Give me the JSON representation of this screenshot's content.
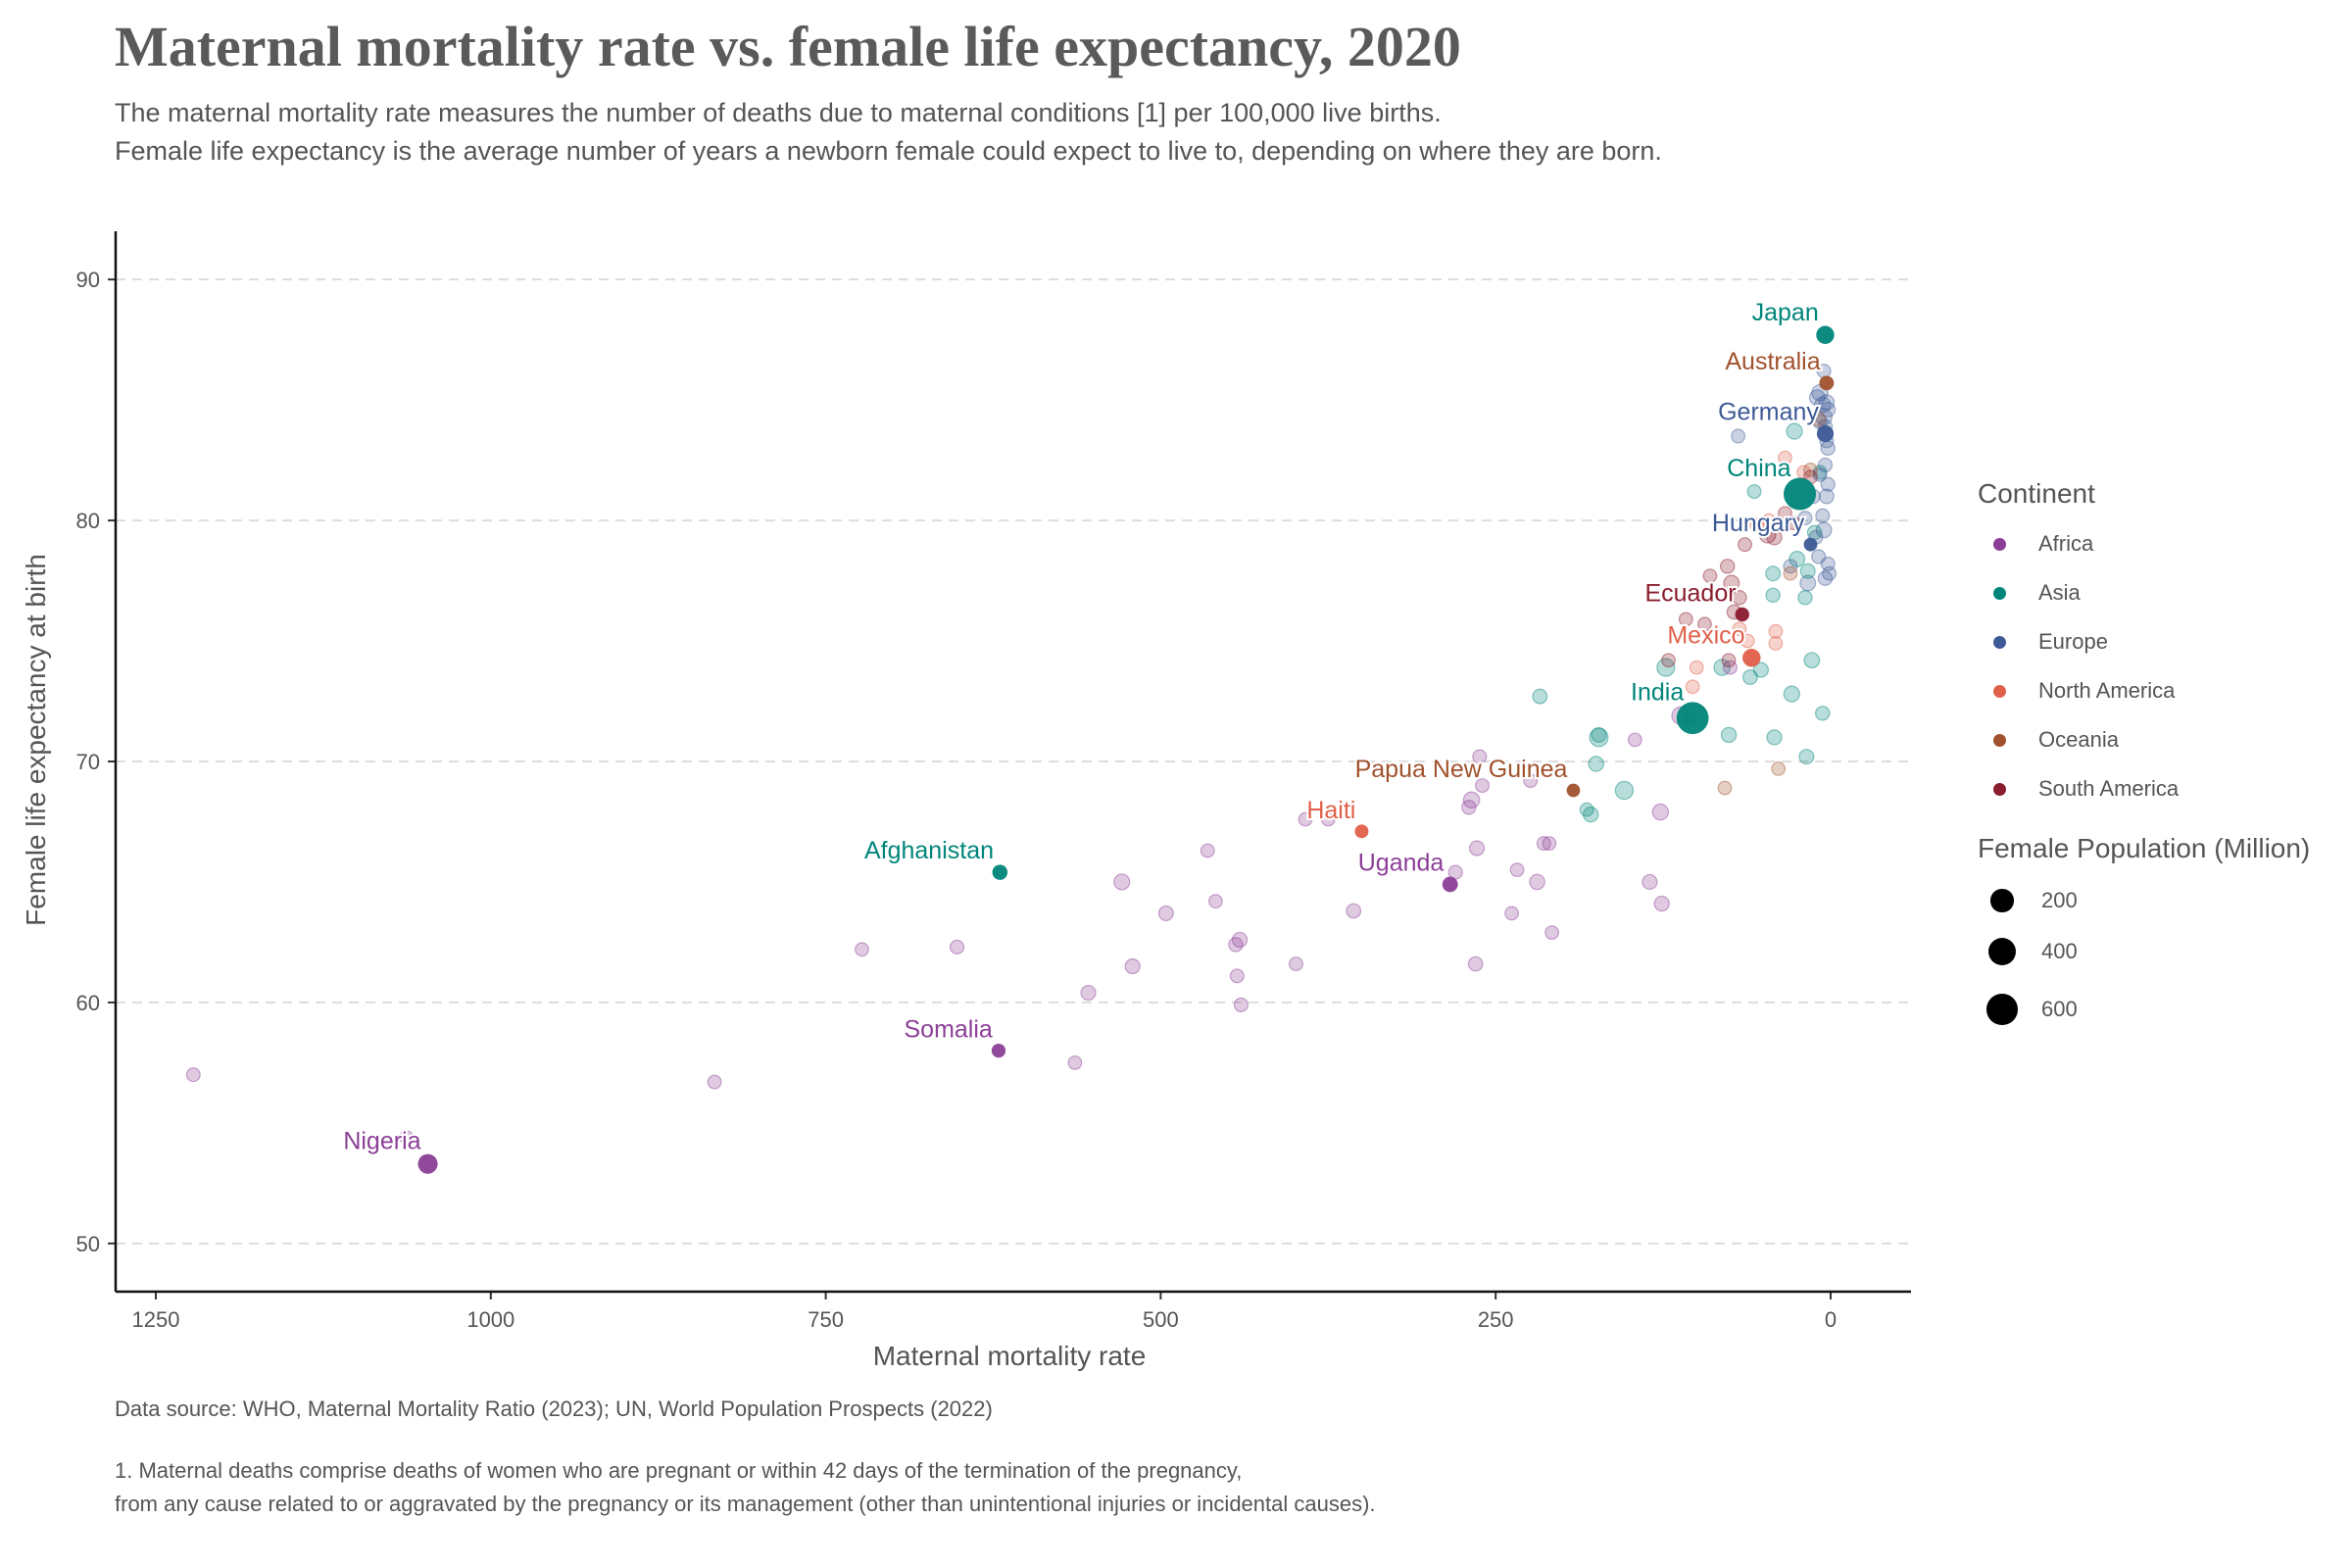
{
  "title": "Maternal mortality rate vs. female life expectancy, 2020",
  "subtitle_1": "The maternal mortality rate measures the number of deaths due to maternal conditions [1] per 100,000 live births.",
  "subtitle_2": "Female life expectancy is the average number of years a newborn female could expect to live to, depending on where they are born.",
  "source": "Data source: WHO, Maternal Mortality Ratio (2023); UN, World Population Prospects (2022)",
  "footnote_1": "1. Maternal deaths comprise deaths of women who are pregnant or within 42 days of the termination of the pregnancy,",
  "footnote_2": "from any cause related to or aggravated by the pregnancy or its management (other than unintentional injuries or incidental causes).",
  "legend": {
    "continent_title": "Continent",
    "continents": [
      {
        "name": "Africa",
        "color": "#8B3F96"
      },
      {
        "name": "Asia",
        "color": "#00857A"
      },
      {
        "name": "Europe",
        "color": "#3D5A96"
      },
      {
        "name": "North America",
        "color": "#E0604A"
      },
      {
        "name": "Oceania",
        "color": "#A0522D"
      },
      {
        "name": "South America",
        "color": "#8B1C2E"
      }
    ],
    "size_title": "Female Population (Million)",
    "sizes": [
      {
        "label": "200",
        "value": 200
      },
      {
        "label": "400",
        "value": 400
      },
      {
        "label": "600",
        "value": 600
      }
    ]
  },
  "chart_data": {
    "type": "scatter",
    "xlabel": "Maternal mortality rate",
    "ylabel": "Female life expectancy at birth",
    "xlim": [
      1280,
      -60
    ],
    "ylim": [
      48,
      92
    ],
    "x_reversed": true,
    "xticks": [
      1250,
      1000,
      750,
      500,
      250,
      0
    ],
    "yticks": [
      50,
      60,
      70,
      80,
      90
    ],
    "grid": "horizontal dashed",
    "legend_position": "right",
    "highlighted": [
      {
        "label": "Japan",
        "continent": "Asia",
        "x": 4,
        "y": 87.7,
        "pop": 64
      },
      {
        "label": "Australia",
        "continent": "Oceania",
        "x": 3,
        "y": 85.7,
        "pop": 13
      },
      {
        "label": "Germany",
        "continent": "Europe",
        "x": 4,
        "y": 83.6,
        "pop": 42
      },
      {
        "label": "China",
        "continent": "Asia",
        "x": 23,
        "y": 81.1,
        "pop": 690
      },
      {
        "label": "Hungary",
        "continent": "Europe",
        "x": 15,
        "y": 79.0,
        "pop": 5
      },
      {
        "label": "Ecuador",
        "continent": "South America",
        "x": 66,
        "y": 76.1,
        "pop": 9
      },
      {
        "label": "Mexico",
        "continent": "North America",
        "x": 59,
        "y": 74.3,
        "pop": 66
      },
      {
        "label": "India",
        "continent": "Asia",
        "x": 103,
        "y": 71.8,
        "pop": 670
      },
      {
        "label": "Papua New Guinea",
        "continent": "Oceania",
        "x": 192,
        "y": 68.8,
        "pop": 4.5
      },
      {
        "label": "Haiti",
        "continent": "North America",
        "x": 350,
        "y": 67.1,
        "pop": 6
      },
      {
        "label": "Afghanistan",
        "continent": "Asia",
        "x": 620,
        "y": 65.4,
        "pop": 19
      },
      {
        "label": "Uganda",
        "continent": "Africa",
        "x": 284,
        "y": 64.9,
        "pop": 23
      },
      {
        "label": "Somalia",
        "continent": "Africa",
        "x": 621,
        "y": 58.0,
        "pop": 8
      },
      {
        "label": "Nigeria",
        "continent": "Africa",
        "x": 1047,
        "y": 53.3,
        "pop": 103
      }
    ],
    "others": [
      {
        "continent": "Africa",
        "x": 1222,
        "y": 57.0,
        "pop": 5
      },
      {
        "continent": "Africa",
        "x": 1063,
        "y": 54.4,
        "pop": 4
      },
      {
        "continent": "Africa",
        "x": 833,
        "y": 56.7,
        "pop": 5
      },
      {
        "continent": "Africa",
        "x": 723,
        "y": 62.2,
        "pop": 4
      },
      {
        "continent": "Africa",
        "x": 652,
        "y": 62.3,
        "pop": 6
      },
      {
        "continent": "Africa",
        "x": 564,
        "y": 57.5,
        "pop": 4
      },
      {
        "continent": "Africa",
        "x": 529,
        "y": 65.0,
        "pop": 25
      },
      {
        "continent": "Africa",
        "x": 554,
        "y": 60.4,
        "pop": 14
      },
      {
        "continent": "Africa",
        "x": 521,
        "y": 61.5,
        "pop": 14
      },
      {
        "continent": "Africa",
        "x": 496,
        "y": 63.7,
        "pop": 13
      },
      {
        "continent": "Africa",
        "x": 465,
        "y": 66.3,
        "pop": 4
      },
      {
        "continent": "Africa",
        "x": 459,
        "y": 64.2,
        "pop": 4
      },
      {
        "continent": "Africa",
        "x": 441,
        "y": 62.6,
        "pop": 15
      },
      {
        "continent": "Africa",
        "x": 444,
        "y": 62.4,
        "pop": 8
      },
      {
        "continent": "Africa",
        "x": 443,
        "y": 61.1,
        "pop": 5
      },
      {
        "continent": "Africa",
        "x": 440,
        "y": 59.9,
        "pop": 6
      },
      {
        "continent": "Africa",
        "x": 399,
        "y": 61.6,
        "pop": 5
      },
      {
        "continent": "Africa",
        "x": 392,
        "y": 67.6,
        "pop": 4
      },
      {
        "continent": "Africa",
        "x": 375,
        "y": 67.6,
        "pop": 4
      },
      {
        "continent": "Africa",
        "x": 356,
        "y": 63.8,
        "pop": 10
      },
      {
        "continent": "Africa",
        "x": 264,
        "y": 66.4,
        "pop": 14
      },
      {
        "continent": "Africa",
        "x": 268,
        "y": 68.4,
        "pop": 30
      },
      {
        "continent": "Africa",
        "x": 270,
        "y": 68.1,
        "pop": 8
      },
      {
        "continent": "Africa",
        "x": 262,
        "y": 70.2,
        "pop": 6
      },
      {
        "continent": "Africa",
        "x": 260,
        "y": 69.0,
        "pop": 5
      },
      {
        "continent": "Africa",
        "x": 280,
        "y": 65.4,
        "pop": 6
      },
      {
        "continent": "Africa",
        "x": 265,
        "y": 61.6,
        "pop": 10
      },
      {
        "continent": "Africa",
        "x": 224,
        "y": 69.2,
        "pop": 4
      },
      {
        "continent": "Africa",
        "x": 234,
        "y": 65.5,
        "pop": 4
      },
      {
        "continent": "Africa",
        "x": 238,
        "y": 63.7,
        "pop": 4
      },
      {
        "continent": "Africa",
        "x": 214,
        "y": 66.6,
        "pop": 5
      },
      {
        "continent": "Africa",
        "x": 210,
        "y": 66.6,
        "pop": 4
      },
      {
        "continent": "Africa",
        "x": 208,
        "y": 62.9,
        "pop": 4
      },
      {
        "continent": "Africa",
        "x": 219,
        "y": 65.0,
        "pop": 18
      },
      {
        "continent": "Africa",
        "x": 146,
        "y": 70.9,
        "pop": 4
      },
      {
        "continent": "Africa",
        "x": 135,
        "y": 65.0,
        "pop": 14
      },
      {
        "continent": "Africa",
        "x": 126,
        "y": 64.1,
        "pop": 15
      },
      {
        "continent": "Africa",
        "x": 127,
        "y": 67.9,
        "pop": 28
      },
      {
        "continent": "Africa",
        "x": 112,
        "y": 71.9,
        "pop": 52
      },
      {
        "continent": "Africa",
        "x": 75,
        "y": 73.9,
        "pop": 5
      },
      {
        "continent": "Asia",
        "x": 217,
        "y": 72.7,
        "pop": 12
      },
      {
        "continent": "Asia",
        "x": 182,
        "y": 68.0,
        "pop": 4
      },
      {
        "continent": "Asia",
        "x": 179,
        "y": 67.8,
        "pop": 16
      },
      {
        "continent": "Asia",
        "x": 175,
        "y": 69.9,
        "pop": 17
      },
      {
        "continent": "Asia",
        "x": 173,
        "y": 71.1,
        "pop": 12
      },
      {
        "continent": "Asia",
        "x": 173,
        "y": 71.0,
        "pop": 70
      },
      {
        "continent": "Asia",
        "x": 154,
        "y": 68.8,
        "pop": 60
      },
      {
        "continent": "Asia",
        "x": 123,
        "y": 73.9,
        "pop": 55
      },
      {
        "continent": "Asia",
        "x": 81,
        "y": 73.9,
        "pop": 30
      },
      {
        "continent": "Asia",
        "x": 76,
        "y": 71.1,
        "pop": 16
      },
      {
        "continent": "Asia",
        "x": 60,
        "y": 73.5,
        "pop": 12
      },
      {
        "continent": "Asia",
        "x": 52,
        "y": 73.8,
        "pop": 14
      },
      {
        "continent": "Asia",
        "x": 42,
        "y": 71.0,
        "pop": 15
      },
      {
        "continent": "Asia",
        "x": 29,
        "y": 72.8,
        "pop": 25
      },
      {
        "continent": "Asia",
        "x": 18,
        "y": 70.2,
        "pop": 12
      },
      {
        "continent": "Asia",
        "x": 14,
        "y": 74.2,
        "pop": 20
      },
      {
        "continent": "Asia",
        "x": 43,
        "y": 77.8,
        "pop": 12
      },
      {
        "continent": "Asia",
        "x": 43,
        "y": 76.9,
        "pop": 8
      },
      {
        "continent": "Asia",
        "x": 25,
        "y": 78.4,
        "pop": 20
      },
      {
        "continent": "Asia",
        "x": 17,
        "y": 77.9,
        "pop": 12
      },
      {
        "continent": "Asia",
        "x": 19,
        "y": 76.8,
        "pop": 8
      },
      {
        "continent": "Asia",
        "x": 6,
        "y": 72.0,
        "pop": 8
      },
      {
        "continent": "Asia",
        "x": 27,
        "y": 83.7,
        "pop": 25
      },
      {
        "continent": "Asia",
        "x": 57,
        "y": 81.2,
        "pop": 5
      },
      {
        "continent": "Asia",
        "x": 8,
        "y": 82.0,
        "pop": 5
      },
      {
        "continent": "Asia",
        "x": 12,
        "y": 79.5,
        "pop": 8
      },
      {
        "continent": "Europe",
        "x": 69,
        "y": 83.5,
        "pop": 5
      },
      {
        "continent": "Europe",
        "x": 10,
        "y": 85.1,
        "pop": 20
      },
      {
        "continent": "Europe",
        "x": 8,
        "y": 85.3,
        "pop": 30
      },
      {
        "continent": "Europe",
        "x": 6,
        "y": 84.8,
        "pop": 25
      },
      {
        "continent": "Europe",
        "x": 3,
        "y": 84.9,
        "pop": 18
      },
      {
        "continent": "Europe",
        "x": 5,
        "y": 84.3,
        "pop": 32
      },
      {
        "continent": "Europe",
        "x": 2,
        "y": 84.6,
        "pop": 12
      },
      {
        "continent": "Europe",
        "x": 8,
        "y": 84.1,
        "pop": 10
      },
      {
        "continent": "Europe",
        "x": 4,
        "y": 83.9,
        "pop": 8
      },
      {
        "continent": "Europe",
        "x": 3,
        "y": 83.3,
        "pop": 5
      },
      {
        "continent": "Europe",
        "x": 2,
        "y": 83.0,
        "pop": 8
      },
      {
        "continent": "Europe",
        "x": 4,
        "y": 82.3,
        "pop": 6
      },
      {
        "continent": "Europe",
        "x": 8,
        "y": 81.9,
        "pop": 5
      },
      {
        "continent": "Europe",
        "x": 2,
        "y": 81.5,
        "pop": 6
      },
      {
        "continent": "Europe",
        "x": 3,
        "y": 81.0,
        "pop": 12
      },
      {
        "continent": "Europe",
        "x": 13,
        "y": 81.0,
        "pop": 8
      },
      {
        "continent": "Europe",
        "x": 6,
        "y": 80.2,
        "pop": 5
      },
      {
        "continent": "Europe",
        "x": 5,
        "y": 79.6,
        "pop": 20
      },
      {
        "continent": "Europe",
        "x": 11,
        "y": 79.3,
        "pop": 5
      },
      {
        "continent": "Europe",
        "x": 9,
        "y": 78.5,
        "pop": 6
      },
      {
        "continent": "Europe",
        "x": 2,
        "y": 78.2,
        "pop": 5
      },
      {
        "continent": "Europe",
        "x": 4,
        "y": 77.6,
        "pop": 8
      },
      {
        "continent": "Europe",
        "x": 17,
        "y": 77.4,
        "pop": 22
      },
      {
        "continent": "Europe",
        "x": 1,
        "y": 77.8,
        "pop": 5
      },
      {
        "continent": "Europe",
        "x": 30,
        "y": 78.1,
        "pop": 5
      },
      {
        "continent": "Europe",
        "x": 19,
        "y": 80.1,
        "pop": 5
      },
      {
        "continent": "Europe",
        "x": 5,
        "y": 86.2,
        "pop": 5
      },
      {
        "continent": "North America",
        "x": 34,
        "y": 82.6,
        "pop": 4
      },
      {
        "continent": "North America",
        "x": 20,
        "y": 82.0,
        "pop": 4
      },
      {
        "continent": "North America",
        "x": 55,
        "y": 79.8,
        "pop": 4
      },
      {
        "continent": "North America",
        "x": 46,
        "y": 80.0,
        "pop": 4
      },
      {
        "continent": "North America",
        "x": 41,
        "y": 75.4,
        "pop": 4
      },
      {
        "continent": "North America",
        "x": 62,
        "y": 75.0,
        "pop": 4
      },
      {
        "continent": "North America",
        "x": 68,
        "y": 75.5,
        "pop": 4
      },
      {
        "continent": "North America",
        "x": 100,
        "y": 73.9,
        "pop": 4
      },
      {
        "continent": "North America",
        "x": 41,
        "y": 74.9,
        "pop": 4
      },
      {
        "continent": "North America",
        "x": 103,
        "y": 73.1,
        "pop": 4
      },
      {
        "continent": "Oceania",
        "x": 79,
        "y": 68.9,
        "pop": 4
      },
      {
        "continent": "Oceania",
        "x": 39,
        "y": 69.7,
        "pop": 4
      },
      {
        "continent": "Oceania",
        "x": 105,
        "y": 71.8,
        "pop": 4
      },
      {
        "continent": "Oceania",
        "x": 30,
        "y": 77.8,
        "pop": 4
      },
      {
        "continent": "Oceania",
        "x": 15,
        "y": 82.1,
        "pop": 4
      },
      {
        "continent": "Oceania",
        "x": 9,
        "y": 84.2,
        "pop": 6
      },
      {
        "continent": "South America",
        "x": 77,
        "y": 78.1,
        "pop": 8
      },
      {
        "continent": "South America",
        "x": 74,
        "y": 77.4,
        "pop": 22
      },
      {
        "continent": "South America",
        "x": 72,
        "y": 76.2,
        "pop": 10
      },
      {
        "continent": "South America",
        "x": 68,
        "y": 76.8,
        "pop": 8
      },
      {
        "continent": "South America",
        "x": 90,
        "y": 77.7,
        "pop": 4
      },
      {
        "continent": "South America",
        "x": 42,
        "y": 79.3,
        "pop": 15
      },
      {
        "continent": "South America",
        "x": 28,
        "y": 79.9,
        "pop": 5
      },
      {
        "continent": "South America",
        "x": 64,
        "y": 79.0,
        "pop": 5
      },
      {
        "continent": "South America",
        "x": 94,
        "y": 75.7,
        "pop": 4
      },
      {
        "continent": "South America",
        "x": 108,
        "y": 75.9,
        "pop": 4
      },
      {
        "continent": "South America",
        "x": 76,
        "y": 74.2,
        "pop": 4
      },
      {
        "continent": "South America",
        "x": 121,
        "y": 74.2,
        "pop": 4
      },
      {
        "continent": "South America",
        "x": 34,
        "y": 80.3,
        "pop": 4
      },
      {
        "continent": "South America",
        "x": 15,
        "y": 81.8,
        "pop": 4
      },
      {
        "continent": "South America",
        "x": 47,
        "y": 79.4,
        "pop": 30
      }
    ]
  }
}
